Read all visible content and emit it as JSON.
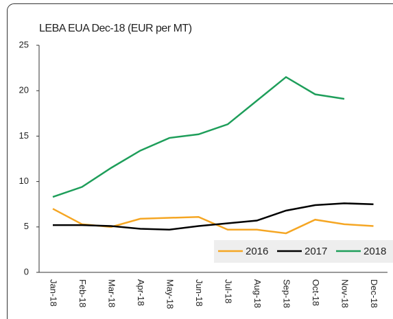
{
  "chart_data": {
    "type": "line",
    "title": "LEBA EUA Dec-18 (EUR per MT)",
    "categories": [
      "Jan-18",
      "Feb-18",
      "Mar-18",
      "Apr-18",
      "May-18",
      "Jun-18",
      "Jul-18",
      "Aug-18",
      "Sep-18",
      "Oct-18",
      "Nov-18",
      "Dec-18"
    ],
    "series": [
      {
        "name": "2016",
        "color": "#f5a623",
        "values": [
          7.0,
          5.3,
          5.0,
          5.9,
          6.0,
          6.1,
          4.7,
          4.7,
          4.3,
          5.8,
          5.3,
          5.1
        ]
      },
      {
        "name": "2017",
        "color": "#000000",
        "values": [
          5.2,
          5.2,
          5.1,
          4.8,
          4.7,
          5.1,
          5.4,
          5.7,
          6.8,
          7.4,
          7.6,
          7.5
        ]
      },
      {
        "name": "2018",
        "color": "#1e9e5a",
        "values": [
          8.3,
          9.4,
          11.5,
          13.4,
          14.8,
          15.2,
          16.3,
          18.9,
          21.5,
          19.6,
          19.1,
          null
        ]
      }
    ],
    "ylim": [
      0,
      25
    ],
    "yticks": [
      0,
      5,
      10,
      15,
      20,
      25
    ],
    "legend": "lower right"
  }
}
